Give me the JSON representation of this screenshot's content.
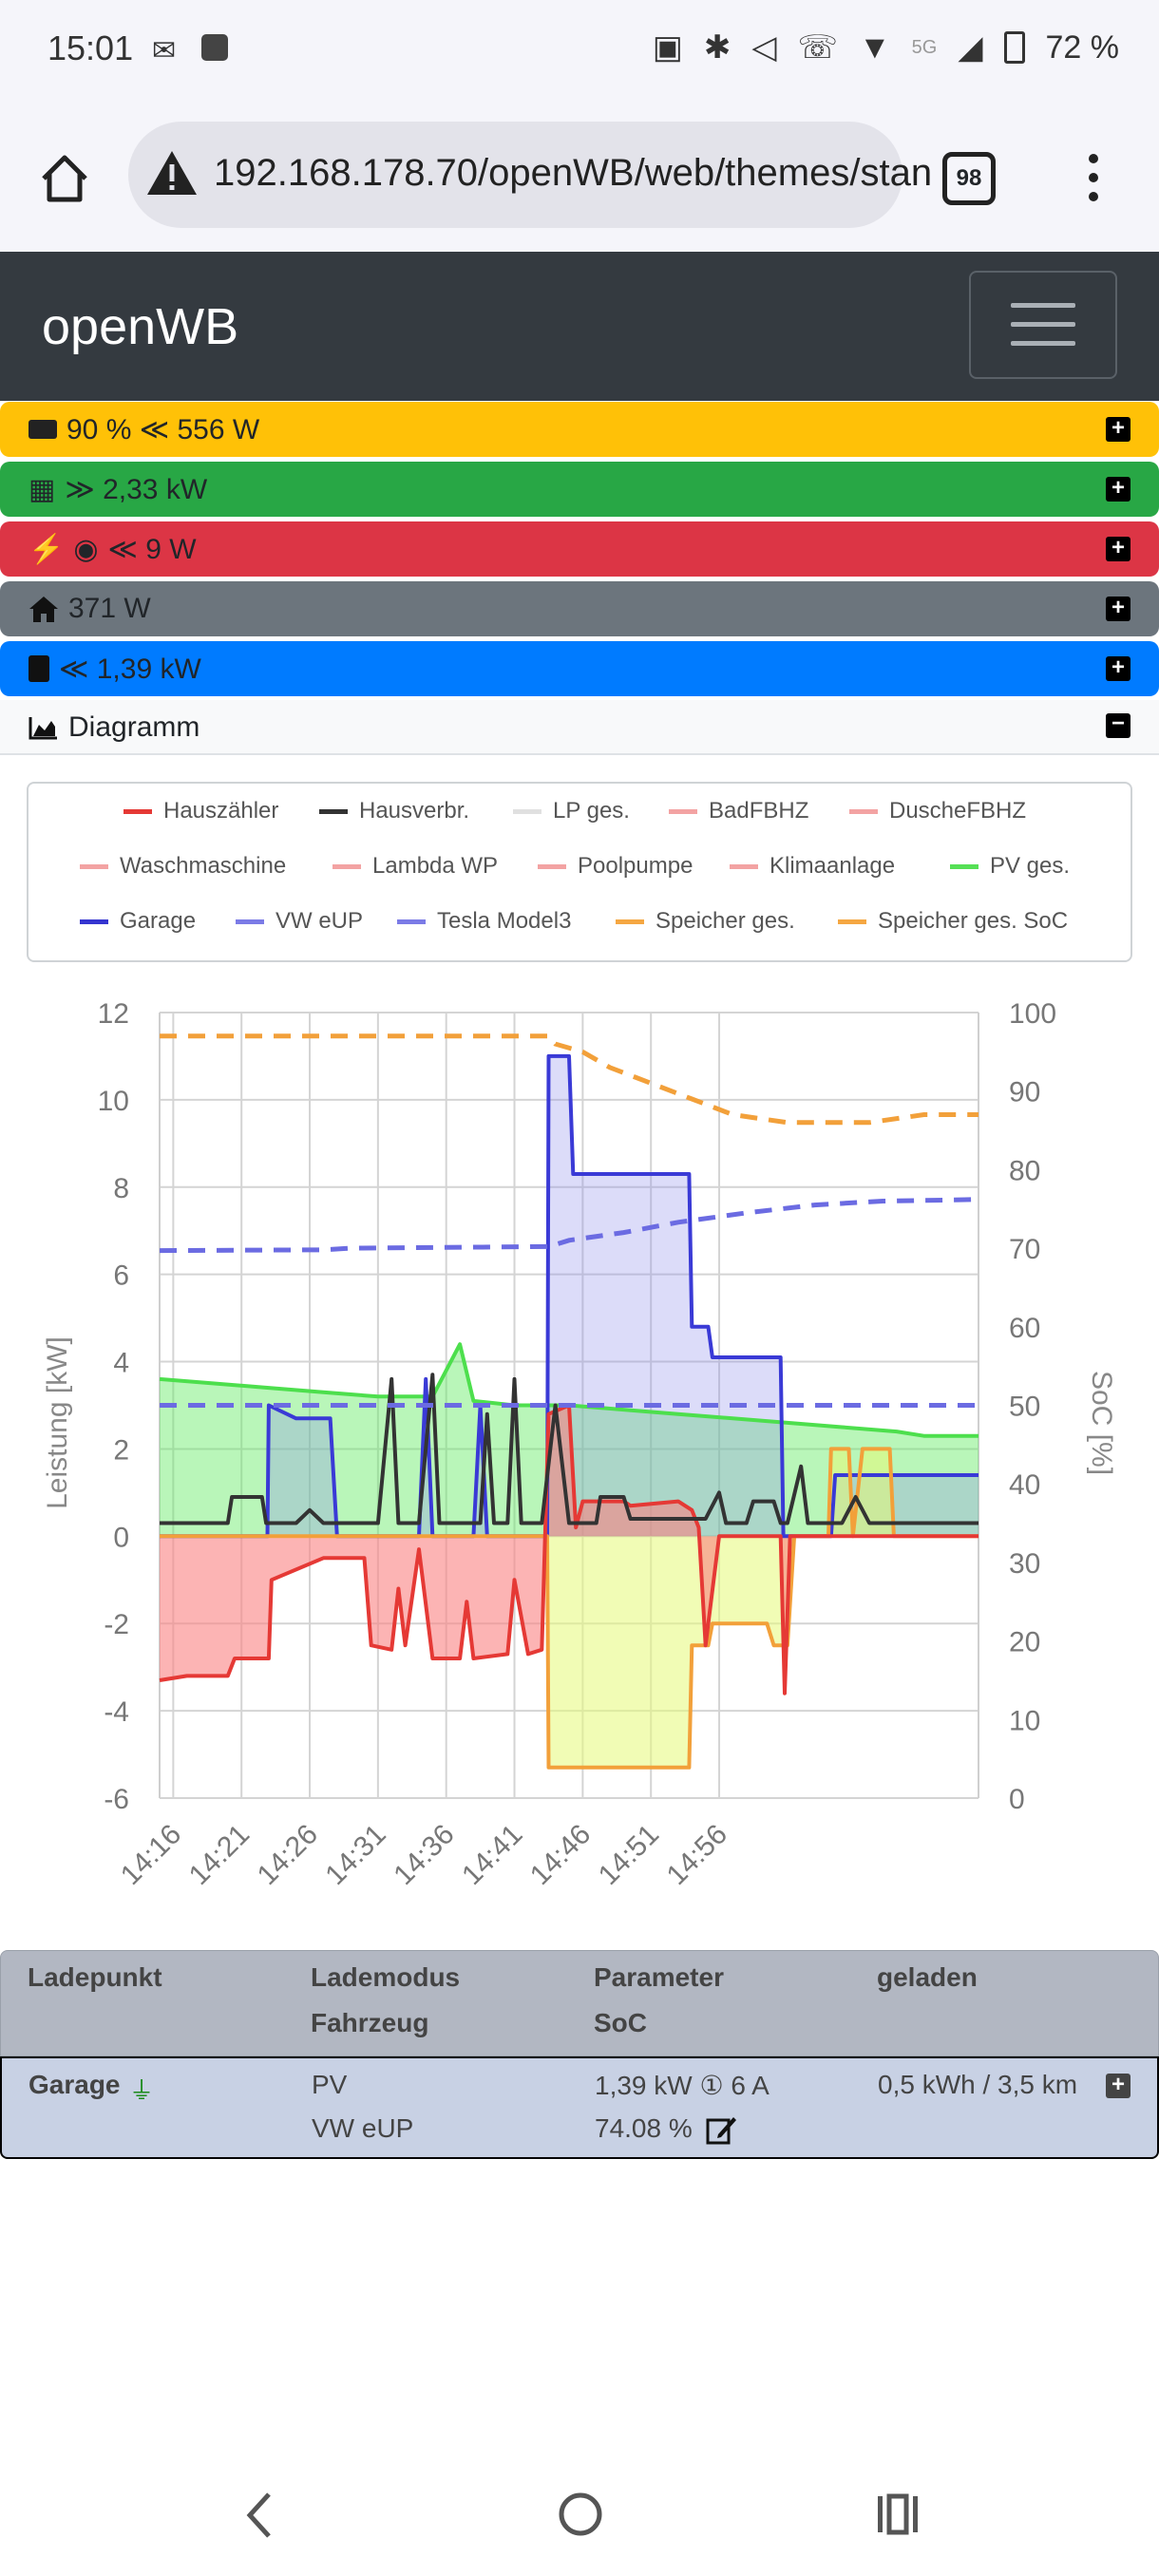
{
  "status_bar": {
    "time": "15:01",
    "battery": "72 %",
    "network": "5G"
  },
  "browser": {
    "url": "192.168.178.70/openWB/web/themes/stan",
    "tab_count": "98"
  },
  "navbar": {
    "brand": "openWB"
  },
  "status_rows": [
    {
      "text": "90 % ≪ 556 W",
      "color": "#ffc107"
    },
    {
      "text": "≫ 2,33 kW",
      "color": "#28a745"
    },
    {
      "text": "≪ 9 W",
      "color": "#dc3545"
    },
    {
      "text": "371 W",
      "color": "#6c757d"
    },
    {
      "text": "≪ 1,39 kW",
      "color": "#007bff"
    }
  ],
  "diagram": {
    "title": "Diagramm"
  },
  "legend": [
    {
      "label": "Hauszähler",
      "color": "#e53935"
    },
    {
      "label": "Hausverbr.",
      "color": "#333333"
    },
    {
      "label": "LP ges.",
      "color": "#e0e0e0"
    },
    {
      "label": "BadFBHZ",
      "color": "#f3a3a3"
    },
    {
      "label": "DuscheFBHZ",
      "color": "#f3a3a3"
    },
    {
      "label": "Waschmaschine",
      "color": "#f3a3a3"
    },
    {
      "label": "Lambda WP",
      "color": "#f3a3a3"
    },
    {
      "label": "Poolpumpe",
      "color": "#f3a3a3"
    },
    {
      "label": "Klimaanlage",
      "color": "#f3a3a3"
    },
    {
      "label": "PV ges.",
      "color": "#55e055"
    },
    {
      "label": "Garage",
      "color": "#3535d0"
    },
    {
      "label": "VW eUP",
      "color": "#7b7be6"
    },
    {
      "label": "Tesla Model3",
      "color": "#7b7be6"
    },
    {
      "label": "Speicher ges.",
      "color": "#f5a742"
    },
    {
      "label": "Speicher ges. SoC",
      "color": "#f5a742"
    }
  ],
  "chart_data": {
    "type": "line",
    "ylabel": "Leistung [kW]",
    "y2label": "SoC [%]",
    "ylim": [
      -6,
      12
    ],
    "y2lim": [
      0,
      100
    ],
    "yticks": [
      -6,
      -4,
      -2,
      0,
      2,
      4,
      6,
      8,
      10,
      12
    ],
    "y2ticks": [
      0,
      10,
      20,
      30,
      40,
      50,
      60,
      70,
      80,
      90,
      100
    ],
    "xticks": [
      "14:16",
      "14:21",
      "14:26",
      "14:31",
      "14:36",
      "14:41",
      "14:46",
      "14:51",
      "14:56"
    ],
    "series": [
      {
        "name": "PV ges.",
        "color": "#4ddf4d",
        "fill": "rgba(100,235,100,0.45)",
        "points": [
          [
            0,
            3.6
          ],
          [
            4,
            3.5
          ],
          [
            8,
            3.4
          ],
          [
            12,
            3.3
          ],
          [
            16,
            3.2
          ],
          [
            20,
            3.2
          ],
          [
            22,
            4.4
          ],
          [
            23,
            3.1
          ],
          [
            26,
            3.0
          ],
          [
            30,
            3.0
          ],
          [
            34,
            2.9
          ],
          [
            38,
            2.8
          ],
          [
            42,
            2.7
          ],
          [
            46,
            2.6
          ],
          [
            50,
            2.5
          ],
          [
            54,
            2.4
          ],
          [
            56,
            2.3
          ],
          [
            60,
            2.3
          ]
        ]
      },
      {
        "name": "Garage",
        "color": "#3a3ad6",
        "fill": "rgba(140,140,235,0.3)",
        "points": [
          [
            0,
            0
          ],
          [
            7.9,
            0
          ],
          [
            8,
            3.0
          ],
          [
            10,
            2.7
          ],
          [
            12.5,
            2.7
          ],
          [
            13,
            0
          ],
          [
            19,
            0
          ],
          [
            19.5,
            3.6
          ],
          [
            20,
            0
          ],
          [
            23,
            0
          ],
          [
            23.5,
            3.0
          ],
          [
            24,
            0
          ],
          [
            28.4,
            0
          ],
          [
            28.5,
            11.0
          ],
          [
            30,
            11.0
          ],
          [
            30.3,
            8.3
          ],
          [
            38.8,
            8.3
          ],
          [
            39,
            4.8
          ],
          [
            40.2,
            4.8
          ],
          [
            40.5,
            4.1
          ],
          [
            45.5,
            4.1
          ],
          [
            45.7,
            0
          ],
          [
            49.2,
            0
          ],
          [
            49.5,
            1.4
          ],
          [
            60,
            1.4
          ]
        ]
      },
      {
        "name": "Speicher ges.",
        "color": "#f2a03a",
        "fill": "rgba(230,250,120,0.55)",
        "points": [
          [
            0,
            0
          ],
          [
            28.4,
            0
          ],
          [
            28.5,
            -5.3
          ],
          [
            38.8,
            -5.3
          ],
          [
            39,
            -2.5
          ],
          [
            40.2,
            -2.5
          ],
          [
            40.5,
            -2.0
          ],
          [
            44.5,
            -2.0
          ],
          [
            45,
            -2.5
          ],
          [
            46,
            -2.5
          ],
          [
            46.5,
            0
          ],
          [
            49,
            0
          ],
          [
            49.2,
            2.0
          ],
          [
            50.5,
            2.0
          ],
          [
            50.8,
            0
          ],
          [
            51.5,
            2.0
          ],
          [
            53.5,
            2.0
          ],
          [
            53.8,
            0
          ],
          [
            60,
            0
          ]
        ]
      },
      {
        "name": "Hauszähler",
        "color": "#e53935",
        "fill": "rgba(250,130,130,0.6)",
        "points": [
          [
            0,
            -3.3
          ],
          [
            2,
            -3.2
          ],
          [
            5,
            -3.2
          ],
          [
            5.5,
            -2.8
          ],
          [
            8,
            -2.8
          ],
          [
            8.2,
            -1.0
          ],
          [
            12,
            -0.5
          ],
          [
            15,
            -0.5
          ],
          [
            15.5,
            -2.5
          ],
          [
            17,
            -2.6
          ],
          [
            17.5,
            -1.2
          ],
          [
            18,
            -2.5
          ],
          [
            19,
            -0.3
          ],
          [
            20,
            -2.8
          ],
          [
            22,
            -2.8
          ],
          [
            22.5,
            -1.5
          ],
          [
            23,
            -2.8
          ],
          [
            25.5,
            -2.7
          ],
          [
            26,
            -1.0
          ],
          [
            27,
            -2.7
          ],
          [
            28,
            -2.6
          ],
          [
            28.5,
            2.8
          ],
          [
            30,
            3.0
          ],
          [
            30.5,
            0.2
          ],
          [
            31,
            0.8
          ],
          [
            34,
            0.8
          ],
          [
            34.5,
            0.7
          ],
          [
            38,
            0.8
          ],
          [
            39,
            0.6
          ],
          [
            39.5,
            0.2
          ],
          [
            40,
            -2.5
          ],
          [
            41,
            0
          ],
          [
            45,
            0
          ],
          [
            45.5,
            0
          ],
          [
            45.8,
            -3.6
          ],
          [
            46.2,
            0
          ],
          [
            60,
            0
          ]
        ]
      },
      {
        "name": "Hausverbr.",
        "color": "#333333",
        "fill": "none",
        "points": [
          [
            0,
            0.3
          ],
          [
            5,
            0.3
          ],
          [
            5.3,
            0.9
          ],
          [
            7.5,
            0.9
          ],
          [
            7.8,
            0.3
          ],
          [
            10,
            0.3
          ],
          [
            11,
            0.6
          ],
          [
            12,
            0.3
          ],
          [
            16,
            0.3
          ],
          [
            17,
            3.6
          ],
          [
            17.5,
            0.3
          ],
          [
            19,
            0.3
          ],
          [
            20,
            3.7
          ],
          [
            20.5,
            0.3
          ],
          [
            23.5,
            0.3
          ],
          [
            24,
            2.8
          ],
          [
            24.5,
            0.3
          ],
          [
            25.5,
            0.3
          ],
          [
            26,
            3.6
          ],
          [
            26.5,
            0.3
          ],
          [
            28,
            0.3
          ],
          [
            29,
            3.0
          ],
          [
            30,
            0.3
          ],
          [
            32,
            0.3
          ],
          [
            32.3,
            0.9
          ],
          [
            34,
            0.9
          ],
          [
            34.5,
            0.4
          ],
          [
            40,
            0.4
          ],
          [
            41,
            1.0
          ],
          [
            41.5,
            0.3
          ],
          [
            43,
            0.3
          ],
          [
            43.5,
            0.8
          ],
          [
            45,
            0.8
          ],
          [
            45.5,
            0.3
          ],
          [
            46,
            0.3
          ],
          [
            47,
            1.6
          ],
          [
            47.5,
            0.3
          ],
          [
            50,
            0.3
          ],
          [
            51,
            0.9
          ],
          [
            52,
            0.3
          ],
          [
            60,
            0.3
          ]
        ]
      }
    ],
    "soc_series": [
      {
        "name": "Speicher ges. SoC",
        "color": "#f2a03a",
        "points": [
          [
            0,
            97
          ],
          [
            15,
            97
          ],
          [
            28.5,
            97
          ],
          [
            29,
            96
          ],
          [
            31,
            95
          ],
          [
            33,
            93
          ],
          [
            36,
            91
          ],
          [
            39,
            89
          ],
          [
            42,
            87
          ],
          [
            46,
            86
          ],
          [
            52,
            86
          ],
          [
            56,
            87
          ],
          [
            60,
            87
          ]
        ]
      },
      {
        "name": "VW eUP",
        "color": "#6b6be2",
        "points": [
          [
            0,
            69.7
          ],
          [
            12,
            69.8
          ],
          [
            14,
            70
          ],
          [
            28.5,
            70.2
          ],
          [
            30,
            71
          ],
          [
            34,
            72
          ],
          [
            38,
            73.3
          ],
          [
            43,
            74.5
          ],
          [
            48,
            75.5
          ],
          [
            53,
            76
          ],
          [
            60,
            76.2
          ]
        ]
      },
      {
        "name": "Tesla Model3",
        "color": "#6b6be2",
        "points": [
          [
            0,
            50
          ],
          [
            60,
            50
          ]
        ]
      }
    ]
  },
  "table": {
    "headers": {
      "col1": "Ladepunkt",
      "col2a": "Lademodus",
      "col2b": "Fahrzeug",
      "col3a": "Parameter",
      "col3b": "SoC",
      "col4": "geladen"
    },
    "row": {
      "name": "Garage",
      "mode": "PV",
      "vehicle": "VW eUP",
      "power": "1,39 kW ① 6 A",
      "soc": "74.08 %",
      "charged": "0,5 kWh / 3,5 km"
    }
  }
}
